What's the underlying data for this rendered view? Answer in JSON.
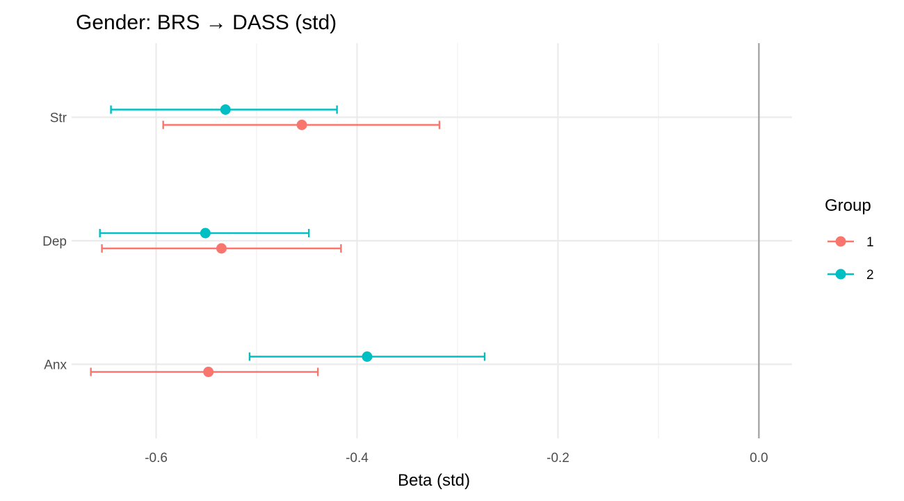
{
  "chart_data": {
    "type": "scatter",
    "subtype": "forest-plot",
    "title": "Gender: BRS → DASS (std)",
    "xlabel": "Beta (std)",
    "ylabel": "",
    "xlim": [
      -0.68,
      0.033
    ],
    "x_ticks": [
      -0.6,
      -0.4,
      -0.2,
      0.0
    ],
    "x_tick_labels": [
      "-0.6",
      "-0.4",
      "-0.2",
      "0.0"
    ],
    "categories": [
      "Str",
      "Dep",
      "Anx"
    ],
    "reference_line": 0.0,
    "grid": true,
    "legend": {
      "title": "Group",
      "placement": "right"
    },
    "series": [
      {
        "name": "1",
        "color": "#F8766D",
        "points": [
          {
            "category": "Str",
            "estimate": -0.455,
            "lower": -0.593,
            "upper": -0.318
          },
          {
            "category": "Dep",
            "estimate": -0.535,
            "lower": -0.654,
            "upper": -0.416
          },
          {
            "category": "Anx",
            "estimate": -0.548,
            "lower": -0.665,
            "upper": -0.439
          }
        ]
      },
      {
        "name": "2",
        "color": "#00BFC4",
        "points": [
          {
            "category": "Str",
            "estimate": -0.531,
            "lower": -0.645,
            "upper": -0.42
          },
          {
            "category": "Dep",
            "estimate": -0.551,
            "lower": -0.656,
            "upper": -0.448
          },
          {
            "category": "Anx",
            "estimate": -0.39,
            "lower": -0.507,
            "upper": -0.273
          }
        ]
      }
    ]
  }
}
